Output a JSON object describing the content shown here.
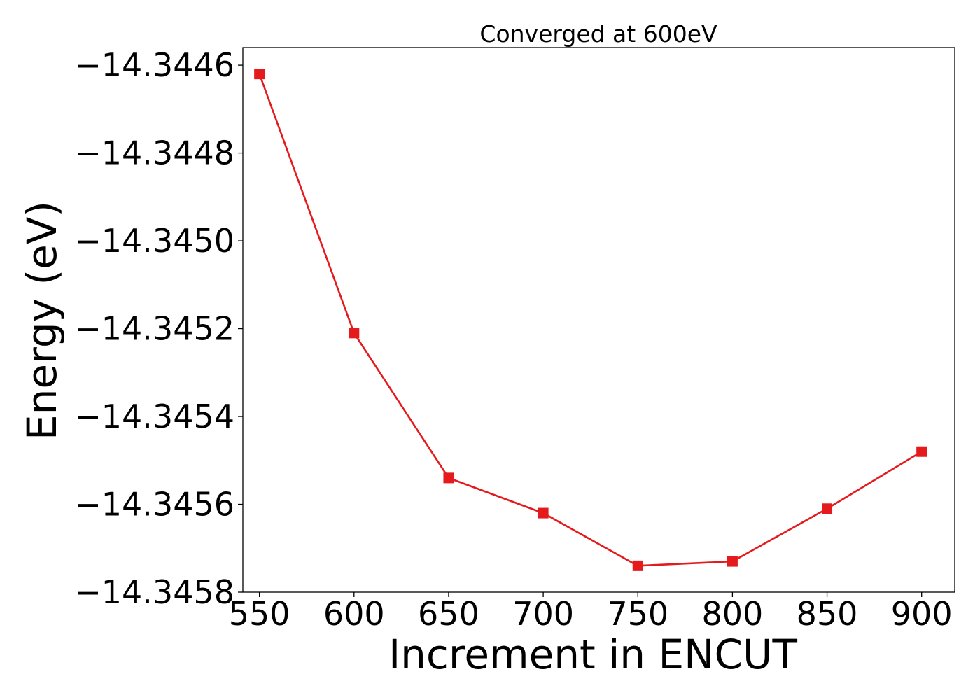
{
  "chart_data": {
    "type": "line",
    "title": "Converged at 600eV",
    "xlabel": "Increment in ENCUT",
    "ylabel": "Energy (eV)",
    "x": [
      550,
      600,
      650,
      700,
      750,
      800,
      850,
      900
    ],
    "series": [
      {
        "values": [
          -14.34462,
          -14.34521,
          -14.34554,
          -14.34562,
          -14.34574,
          -14.34573,
          -14.34561,
          -14.34548
        ],
        "color": "#e41a1c",
        "marker": "square"
      }
    ],
    "xticks": [
      "550",
      "600",
      "650",
      "700",
      "750",
      "800",
      "850",
      "900"
    ],
    "xtick_values": [
      550,
      600,
      650,
      700,
      750,
      800,
      850,
      900
    ],
    "yticks": [
      "−14.3446",
      "−14.3448",
      "−14.3450",
      "−14.3452",
      "−14.3454",
      "−14.3456",
      "−14.3458"
    ],
    "ytick_values": [
      -14.3446,
      -14.3448,
      -14.345,
      -14.3452,
      -14.3454,
      -14.3456,
      -14.3458
    ],
    "xlim": [
      541.25,
      917.5
    ],
    "ylim": [
      -14.3458,
      -14.34456
    ],
    "grid": false,
    "legend": "none"
  }
}
